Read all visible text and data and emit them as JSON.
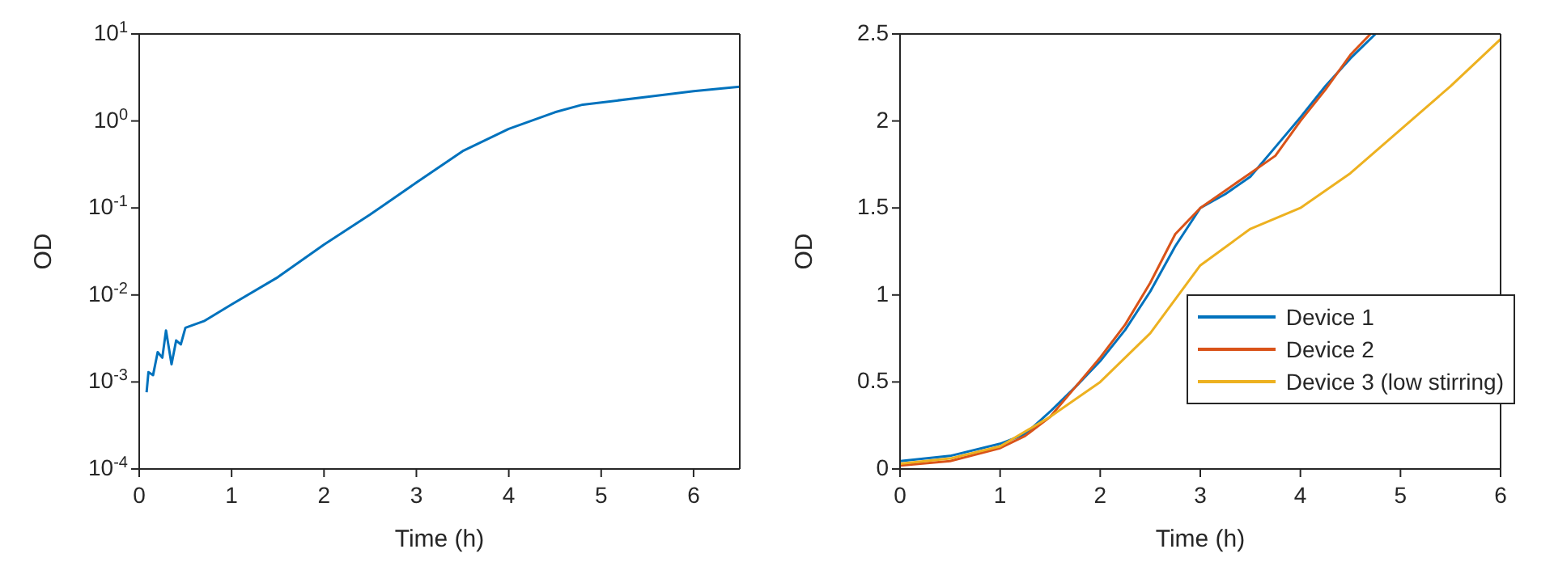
{
  "chart_data": [
    {
      "type": "line",
      "xlabel": "Time (h)",
      "ylabel": "OD",
      "log": "y",
      "xlim": [
        0,
        6.5
      ],
      "xticks": [
        0,
        1,
        2,
        3,
        4,
        5,
        6
      ],
      "ylim": [
        0.0001,
        10
      ],
      "yticks": [
        {
          "value": 0.0001,
          "label": "10$^{-4}$"
        },
        {
          "value": 0.001,
          "label": "10$^{-3}$"
        },
        {
          "value": 0.01,
          "label": "10$^{-2}$"
        },
        {
          "value": 0.1,
          "label": "10$^{-1}$"
        },
        {
          "value": 1,
          "label": "10$^{0}$"
        },
        {
          "value": 10,
          "label": "10$^{1}$"
        }
      ],
      "series": [
        {
          "color": "#0072bd",
          "x": [
            0.08,
            0.1,
            0.15,
            0.2,
            0.25,
            0.29,
            0.35,
            0.4,
            0.45,
            0.5,
            0.7,
            1.0,
            1.5,
            2.0,
            2.5,
            3.0,
            3.5,
            4.0,
            4.5,
            4.8,
            5.5,
            6.0,
            6.5
          ],
          "values": [
            0.00076,
            0.0013,
            0.0012,
            0.0022,
            0.0019,
            0.0039,
            0.0016,
            0.003,
            0.0027,
            0.0042,
            0.005,
            0.0078,
            0.016,
            0.038,
            0.084,
            0.196,
            0.45,
            0.81,
            1.26,
            1.54,
            1.89,
            2.2,
            2.48
          ]
        }
      ]
    },
    {
      "type": "line",
      "xlabel": "Time (h)",
      "ylabel": "OD",
      "legend": "bottom right",
      "xlim": [
        0,
        6
      ],
      "xticks": [
        0,
        1,
        2,
        3,
        4,
        5,
        6
      ],
      "ylim": [
        0,
        2.5
      ],
      "yticks": [
        0,
        0.5,
        1,
        1.5,
        2,
        2.5
      ],
      "series": [
        {
          "name": "Device 1",
          "color": "#0072bd",
          "x": [
            0,
            0.5,
            1,
            1.25,
            1.5,
            1.75,
            2,
            2.25,
            2.5,
            2.75,
            3,
            3.25,
            3.5,
            3.75,
            4,
            4.25,
            4.5,
            4.75
          ],
          "values": [
            0.045,
            0.075,
            0.145,
            0.2,
            0.33,
            0.47,
            0.62,
            0.8,
            1.02,
            1.28,
            1.5,
            1.58,
            1.68,
            1.85,
            2.02,
            2.2,
            2.36,
            2.5
          ]
        },
        {
          "name": "Device 2",
          "color": "#d95319",
          "x": [
            0,
            0.5,
            1,
            1.25,
            1.5,
            1.75,
            2,
            2.25,
            2.5,
            2.75,
            3,
            3.25,
            3.5,
            3.75,
            4,
            4.25,
            4.5,
            4.7
          ],
          "values": [
            0.02,
            0.045,
            0.12,
            0.19,
            0.3,
            0.47,
            0.64,
            0.83,
            1.07,
            1.35,
            1.5,
            1.6,
            1.7,
            1.8,
            2.0,
            2.18,
            2.38,
            2.5
          ]
        },
        {
          "name": "Device 3 (low stirring)",
          "color": "#edb120",
          "x": [
            0,
            0.5,
            1,
            1.5,
            2,
            2.5,
            3,
            3.5,
            4,
            4.5,
            5,
            5.5,
            6
          ],
          "values": [
            0.03,
            0.06,
            0.13,
            0.3,
            0.5,
            0.78,
            1.17,
            1.38,
            1.5,
            1.7,
            1.95,
            2.2,
            2.47
          ]
        }
      ]
    }
  ]
}
